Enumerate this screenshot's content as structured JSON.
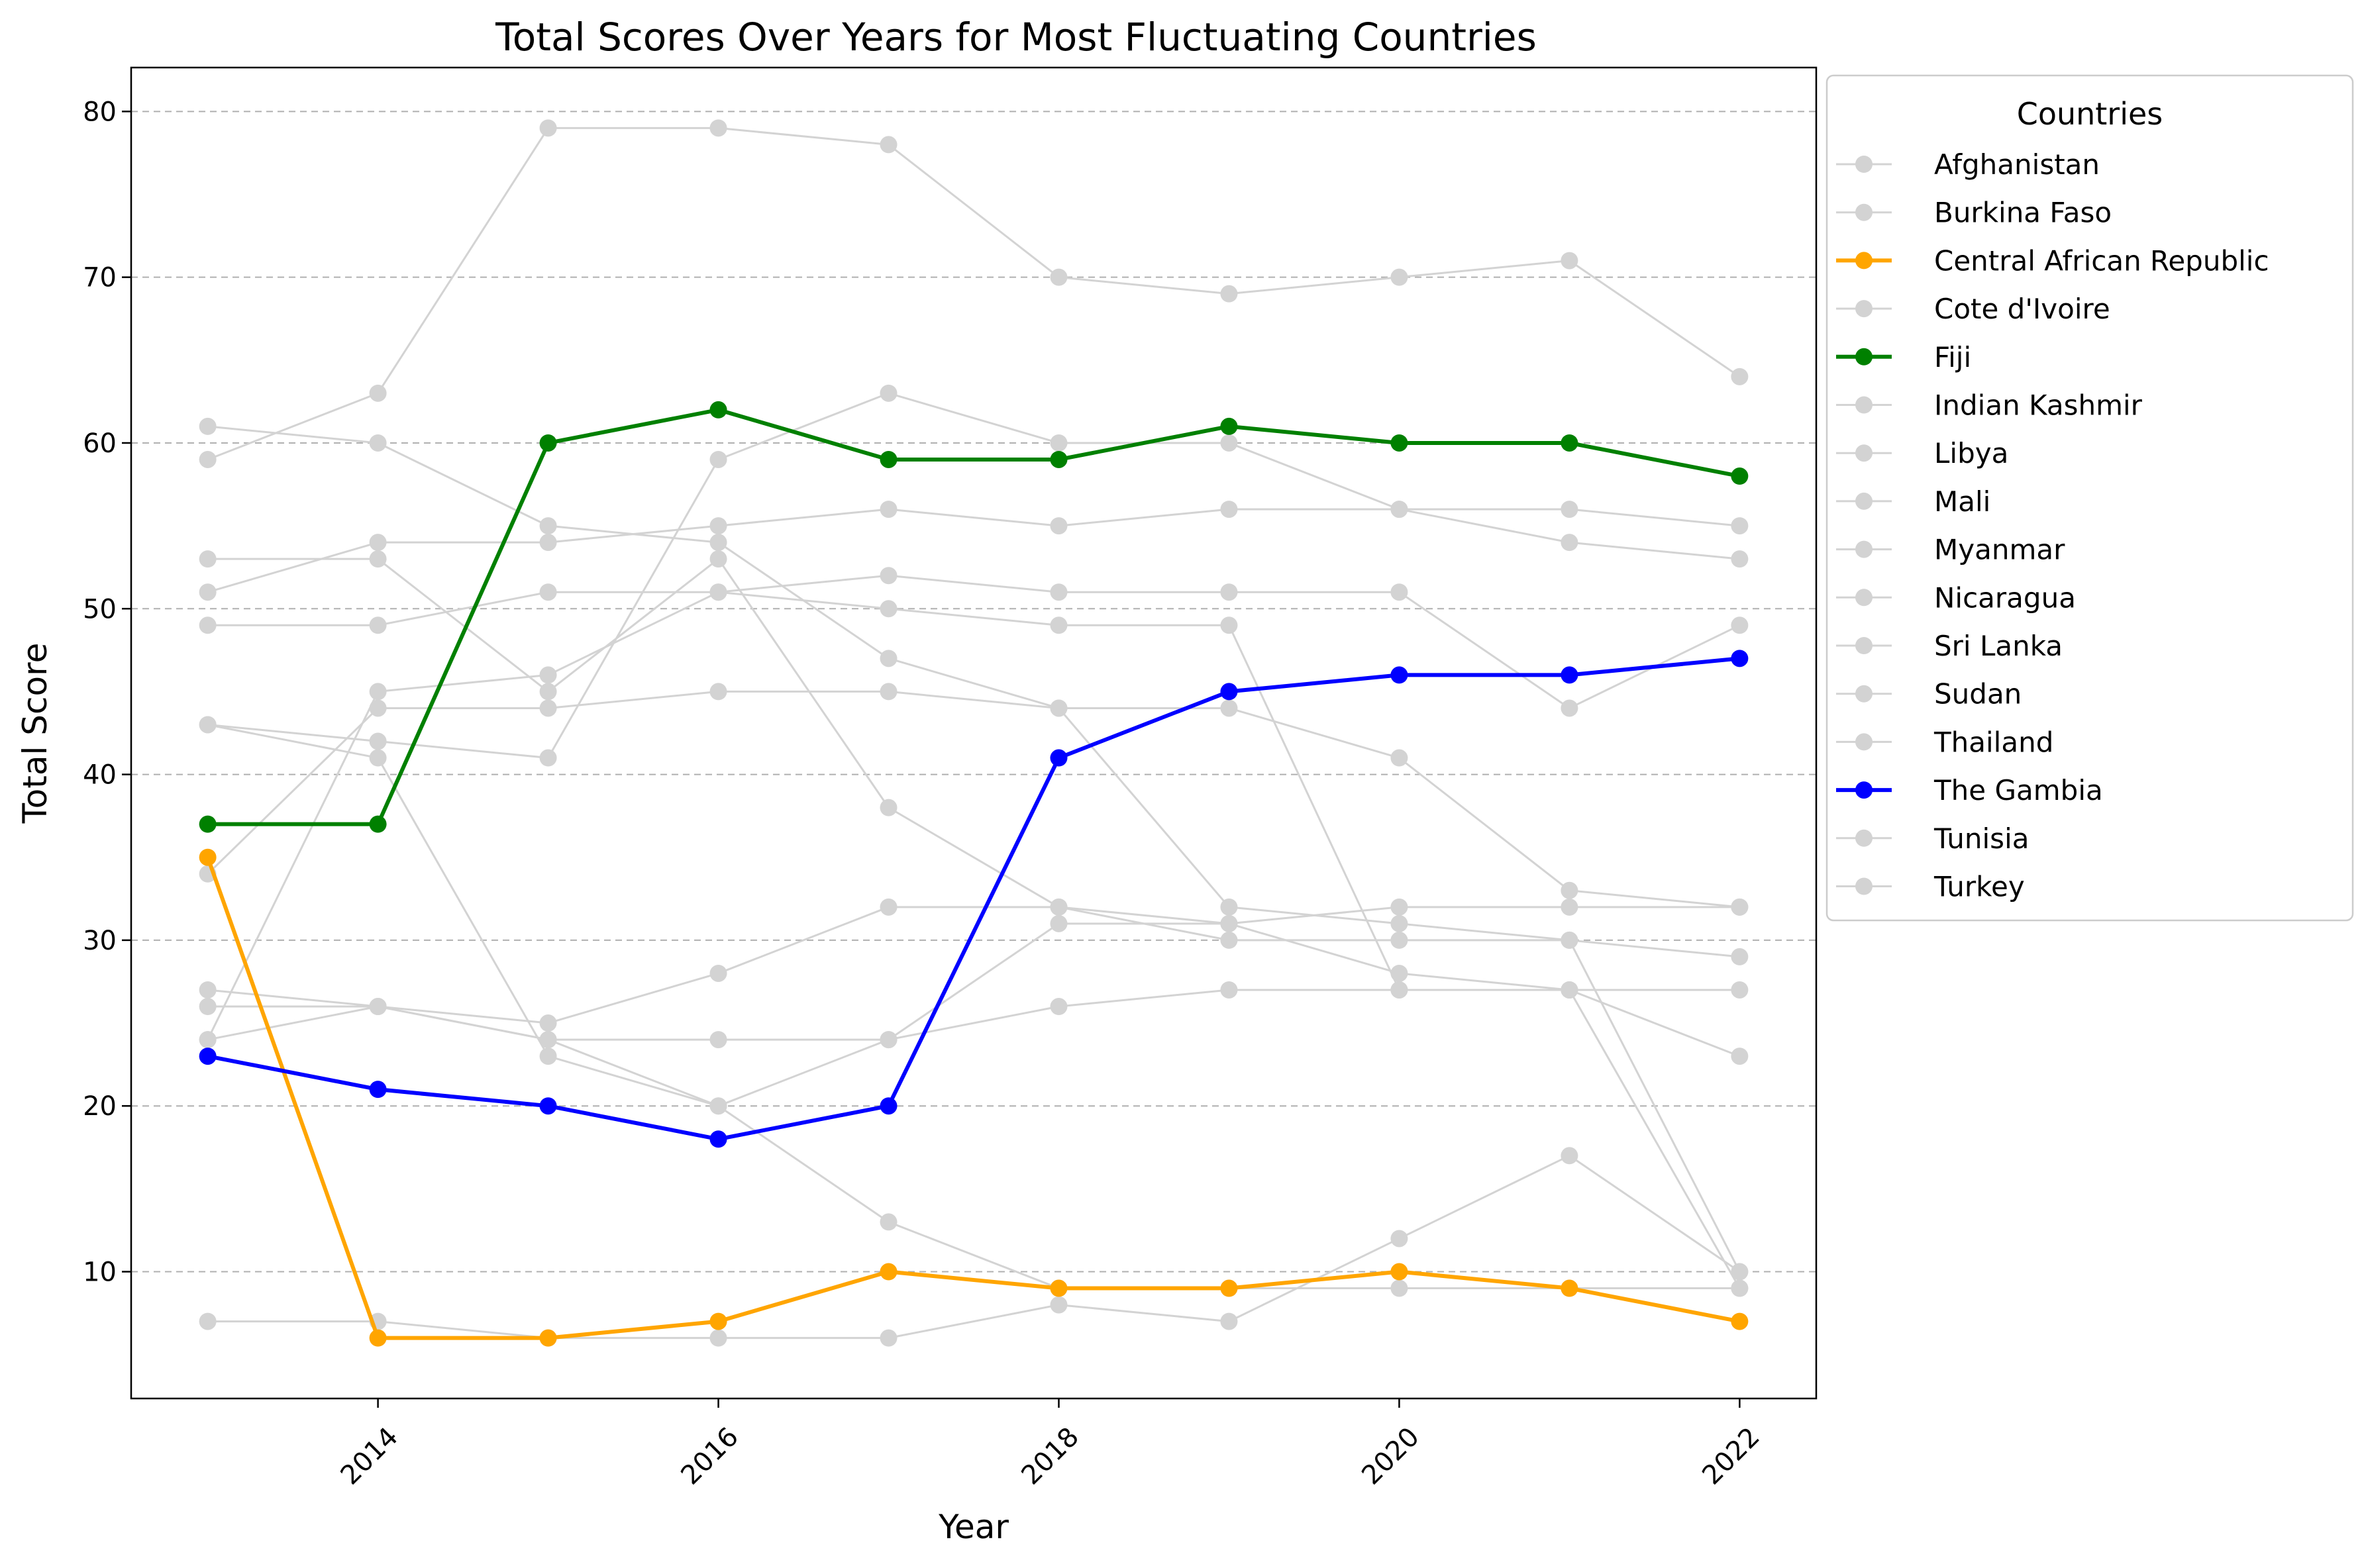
{
  "chart_data": {
    "type": "line",
    "title": "Total Scores Over Years for Most Fluctuating Countries",
    "xlabel": "Year",
    "ylabel": "Total Score",
    "xlim": [
      2012.55,
      2022.45
    ],
    "ylim": [
      2.35,
      82.65
    ],
    "x": [
      2013,
      2014,
      2015,
      2016,
      2017,
      2018,
      2019,
      2020,
      2021,
      2022
    ],
    "xticks": [
      2014,
      2016,
      2018,
      2020,
      2022
    ],
    "yticks": [
      10,
      20,
      30,
      40,
      50,
      60,
      70,
      80
    ],
    "grid": "y-dashed",
    "legend": {
      "title": "Countries",
      "placement": "outside-right"
    },
    "highlight_colors": {
      "Central African Republic": "#FFA500",
      "Fiji": "#008000",
      "The Gambia": "#0000FF"
    },
    "default_color": "#D3D3D3",
    "series": [
      {
        "name": "Afghanistan",
        "values": [
          24,
          26,
          24,
          24,
          24,
          26,
          27,
          27,
          27,
          9
        ]
      },
      {
        "name": "Burkina Faso",
        "values": [
          53,
          53,
          45,
          53,
          38,
          32,
          31,
          32,
          32,
          32
        ]
      },
      {
        "name": "Central African Republic",
        "values": [
          35,
          6,
          6,
          7,
          10,
          9,
          9,
          10,
          9,
          7
        ]
      },
      {
        "name": "Cote d'Ivoire",
        "values": [
          34,
          44,
          44,
          45,
          45,
          44,
          44,
          41,
          33,
          32
        ]
      },
      {
        "name": "Fiji",
        "values": [
          37,
          37,
          60,
          62,
          59,
          59,
          61,
          60,
          60,
          58
        ]
      },
      {
        "name": "Indian Kashmir",
        "values": [
          7,
          7,
          6,
          6,
          6,
          8,
          7,
          12,
          17,
          10
        ]
      },
      {
        "name": "Libya",
        "values": [
          43,
          41,
          23,
          20,
          13,
          9,
          9,
          9,
          9,
          9
        ]
      },
      {
        "name": "Mali",
        "values": [
          61,
          60,
          55,
          54,
          47,
          44,
          32,
          31,
          30,
          29
        ]
      },
      {
        "name": "Myanmar",
        "values": [
          26,
          26,
          25,
          28,
          32,
          32,
          30,
          30,
          30,
          10
        ]
      },
      {
        "name": "Nicaragua",
        "values": [
          43,
          42,
          41,
          59,
          63,
          60,
          60,
          56,
          54,
          53
        ]
      },
      {
        "name": "Sri Lanka",
        "values": [
          27,
          26,
          24,
          20,
          24,
          31,
          31,
          28,
          27,
          23
        ]
      },
      {
        "name": "Sudan",
        "values": [
          24,
          45,
          46,
          51,
          50,
          49,
          49,
          27,
          27,
          27
        ]
      },
      {
        "name": "Thailand",
        "values": [
          59,
          63,
          79,
          79,
          78,
          70,
          69,
          70,
          71,
          64
        ]
      },
      {
        "name": "The Gambia",
        "values": [
          23,
          21,
          20,
          18,
          20,
          41,
          45,
          46,
          46,
          47
        ]
      },
      {
        "name": "Tunisia",
        "values": [
          51,
          54,
          54,
          55,
          56,
          55,
          56,
          56,
          56,
          55
        ]
      },
      {
        "name": "Turkey",
        "values": [
          49,
          49,
          51,
          51,
          52,
          51,
          51,
          51,
          44,
          49
        ]
      }
    ]
  }
}
